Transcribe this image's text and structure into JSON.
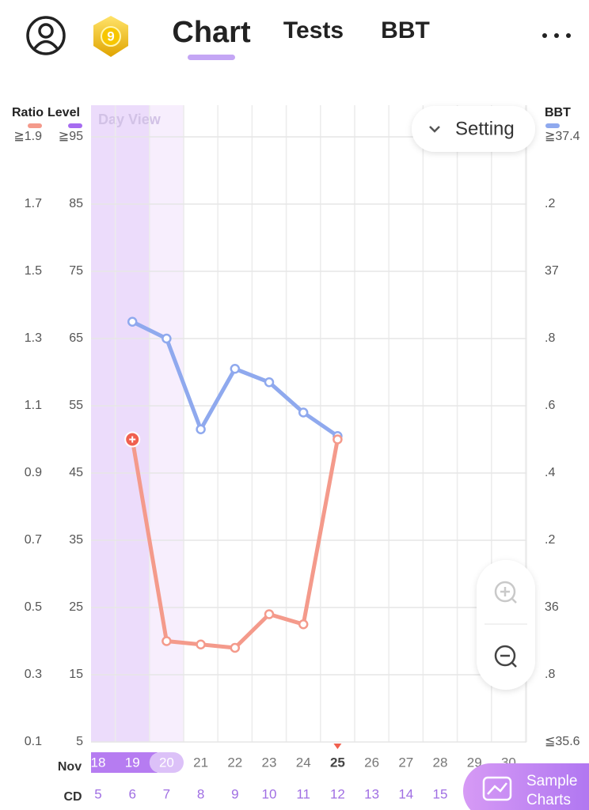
{
  "header": {
    "badge": "9",
    "tabs": [
      "Chart",
      "Tests",
      "BBT"
    ]
  },
  "chart_data": {
    "type": "line",
    "day_view_label": "Day View",
    "setting_label": "Setting",
    "sample_charts_label": "Sample Charts",
    "month_label": "Nov",
    "cd_label": "CD",
    "categories": [
      "18",
      "19",
      "20",
      "21",
      "22",
      "23",
      "24",
      "25",
      "26",
      "27",
      "28",
      "29",
      "30"
    ],
    "cycle_days": [
      "5",
      "6",
      "7",
      "8",
      "9",
      "10",
      "11",
      "12",
      "13",
      "14",
      "15",
      null,
      null
    ],
    "today_index": 7,
    "day_view_range": [
      0,
      2
    ],
    "series": [
      {
        "name": "Ratio",
        "color": "#f49a8b",
        "axis": "y",
        "values": [
          null,
          1.0,
          0.4,
          0.39,
          0.38,
          0.48,
          0.45,
          1.0,
          null,
          null,
          null,
          null,
          null
        ]
      },
      {
        "name": "BBT",
        "color": "#8fa9ee",
        "axis": "y2",
        "values": [
          null,
          36.85,
          36.8,
          36.53,
          36.71,
          36.67,
          36.58,
          36.51,
          null,
          null,
          null,
          null,
          null
        ]
      }
    ],
    "ylim": [
      0.1,
      1.9
    ],
    "yticks": [
      0.1,
      0.3,
      0.5,
      0.7,
      0.9,
      1.1,
      1.3,
      1.5,
      1.7,
      {
        "value": 1.9,
        "label": "≧1.9"
      }
    ],
    "level_label": "Level",
    "level_color": "#a66cf0",
    "level_lim": [
      5,
      95
    ],
    "level_ticks": [
      5,
      15,
      25,
      35,
      45,
      55,
      65,
      75,
      85,
      {
        "value": 95,
        "label": "≧95"
      }
    ],
    "y2lim": [
      35.6,
      37.4
    ],
    "y2ticks": [
      {
        "value": 35.6,
        "label": "≦35.6"
      },
      {
        "value": 35.8,
        "label": ".8"
      },
      36,
      {
        "value": 36.2,
        "label": ".2"
      },
      {
        "value": 36.4,
        "label": ".4"
      },
      {
        "value": 36.6,
        "label": ".6"
      },
      {
        "value": 36.8,
        "label": ".8"
      },
      37,
      {
        "value": 37.2,
        "label": ".2"
      },
      {
        "value": 37.4,
        "label": "≧37.4"
      }
    ],
    "grid": true
  }
}
